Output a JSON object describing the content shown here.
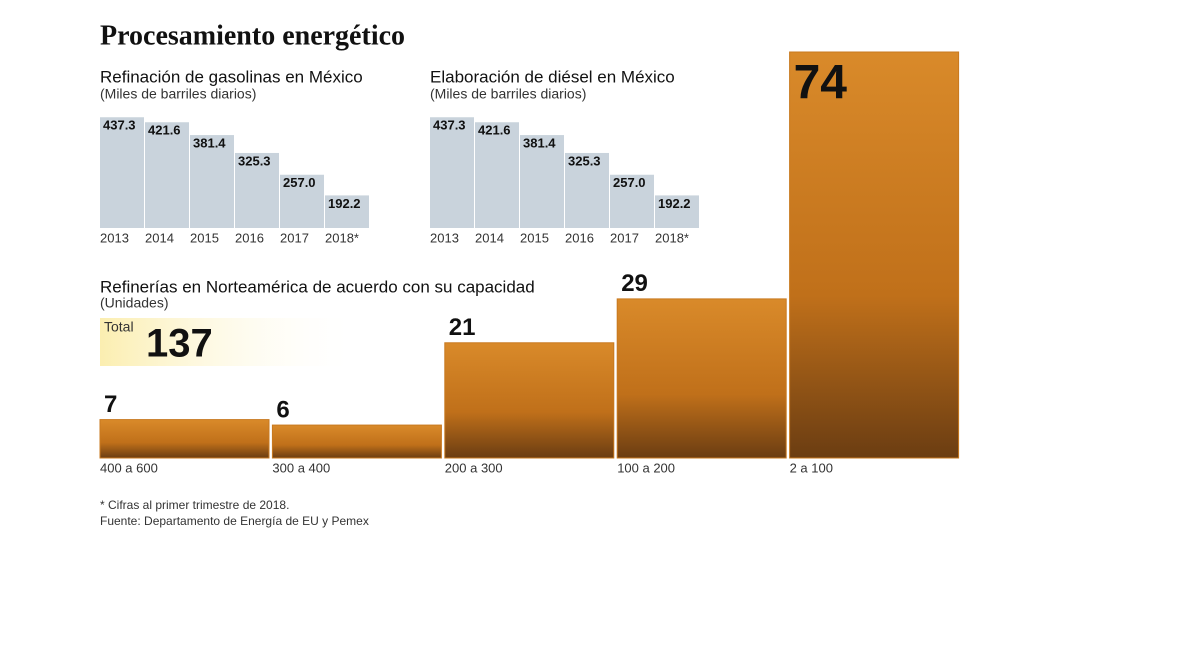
{
  "title": "Procesamiento energético",
  "notes": [
    "* Cifras al primer trimestre de 2018.",
    "Fuente: Departamento de Energía de EU y Pemex"
  ],
  "chart_data": [
    {
      "type": "bar",
      "title": "Refinación de gasolinas en México",
      "subtitle": "(Miles de barriles diarios)",
      "categories": [
        "2013",
        "2014",
        "2015",
        "2016",
        "2017",
        "2018*"
      ],
      "values": [
        437.3,
        421.6,
        381.4,
        325.3,
        257.0,
        192.2
      ],
      "value_labels": [
        "437.3",
        "421.6",
        "381.4",
        "325.3",
        "257.0",
        "192.2"
      ],
      "color": "#c9d3dc",
      "ylim": [
        90,
        460
      ]
    },
    {
      "type": "bar",
      "title": "Elaboración de diésel en México",
      "subtitle": "(Miles de barriles diarios)",
      "categories": [
        "2013",
        "2014",
        "2015",
        "2016",
        "2017",
        "2018*"
      ],
      "values": [
        437.3,
        421.6,
        381.4,
        325.3,
        257.0,
        192.2
      ],
      "value_labels": [
        "437.3",
        "421.6",
        "381.4",
        "325.3",
        "257.0",
        "192.2"
      ],
      "color": "#c9d3dc",
      "ylim": [
        90,
        460
      ]
    },
    {
      "type": "bar",
      "title": "Refinerías en Norteamérica de acuerdo con su capacidad",
      "subtitle": "(Unidades)",
      "total": {
        "label": "Total",
        "value": 137
      },
      "categories": [
        "400 a 600",
        "300 a 400",
        "200 a 300",
        "100 a 200",
        "2 a 100"
      ],
      "values": [
        7,
        6,
        21,
        29,
        74
      ],
      "color": "#c8791f",
      "ylim": [
        0,
        74
      ]
    }
  ]
}
